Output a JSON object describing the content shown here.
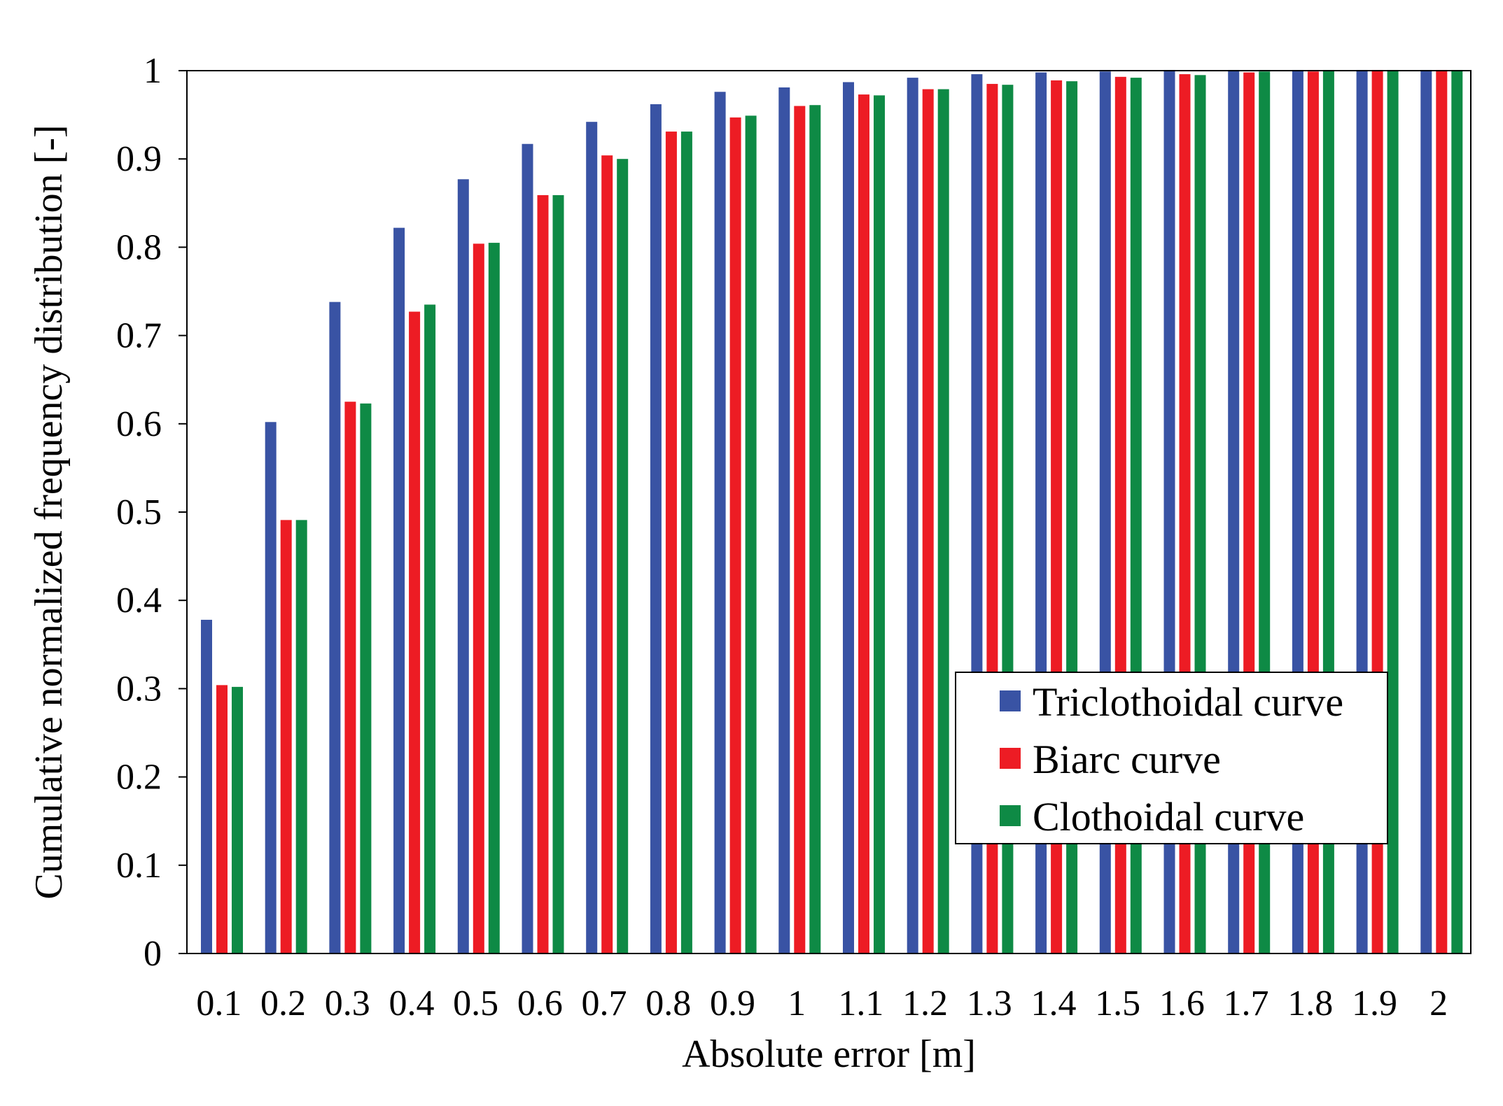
{
  "chart_data": {
    "type": "bar",
    "title": "",
    "xlabel": "Absolute error [m]",
    "ylabel": "Cumulative normalized frequency distribution [-]",
    "ylim": [
      0,
      1
    ],
    "yticks": [
      "0",
      "0.1",
      "0.2",
      "0.3",
      "0.4",
      "0.5",
      "0.6",
      "0.7",
      "0.8",
      "0.9",
      "1"
    ],
    "categories": [
      "0.1",
      "0.2",
      "0.3",
      "0.4",
      "0.5",
      "0.6",
      "0.7",
      "0.8",
      "0.9",
      "1",
      "1.1",
      "1.2",
      "1.3",
      "1.4",
      "1.5",
      "1.6",
      "1.7",
      "1.8",
      "1.9",
      "2"
    ],
    "series": [
      {
        "name": "Triclothoidal curve",
        "color": "#3953a4",
        "values": [
          0.378,
          0.602,
          0.738,
          0.822,
          0.877,
          0.917,
          0.942,
          0.962,
          0.976,
          0.981,
          0.987,
          0.992,
          0.996,
          0.998,
          0.999,
          1.0,
          1.0,
          1.0,
          1.0,
          1.0
        ]
      },
      {
        "name": "Biarc curve",
        "color": "#ed1c24",
        "values": [
          0.304,
          0.491,
          0.625,
          0.727,
          0.804,
          0.859,
          0.904,
          0.931,
          0.947,
          0.96,
          0.973,
          0.979,
          0.985,
          0.989,
          0.993,
          0.996,
          0.998,
          0.999,
          1.0,
          1.0
        ]
      },
      {
        "name": "Clothoidal curve",
        "color": "#0e8a45",
        "values": [
          0.302,
          0.491,
          0.623,
          0.735,
          0.805,
          0.859,
          0.9,
          0.931,
          0.949,
          0.961,
          0.972,
          0.979,
          0.984,
          0.988,
          0.992,
          0.995,
          0.999,
          1.0,
          1.0,
          1.0
        ]
      }
    ],
    "legend_position": "bottom-right",
    "grid": false
  }
}
